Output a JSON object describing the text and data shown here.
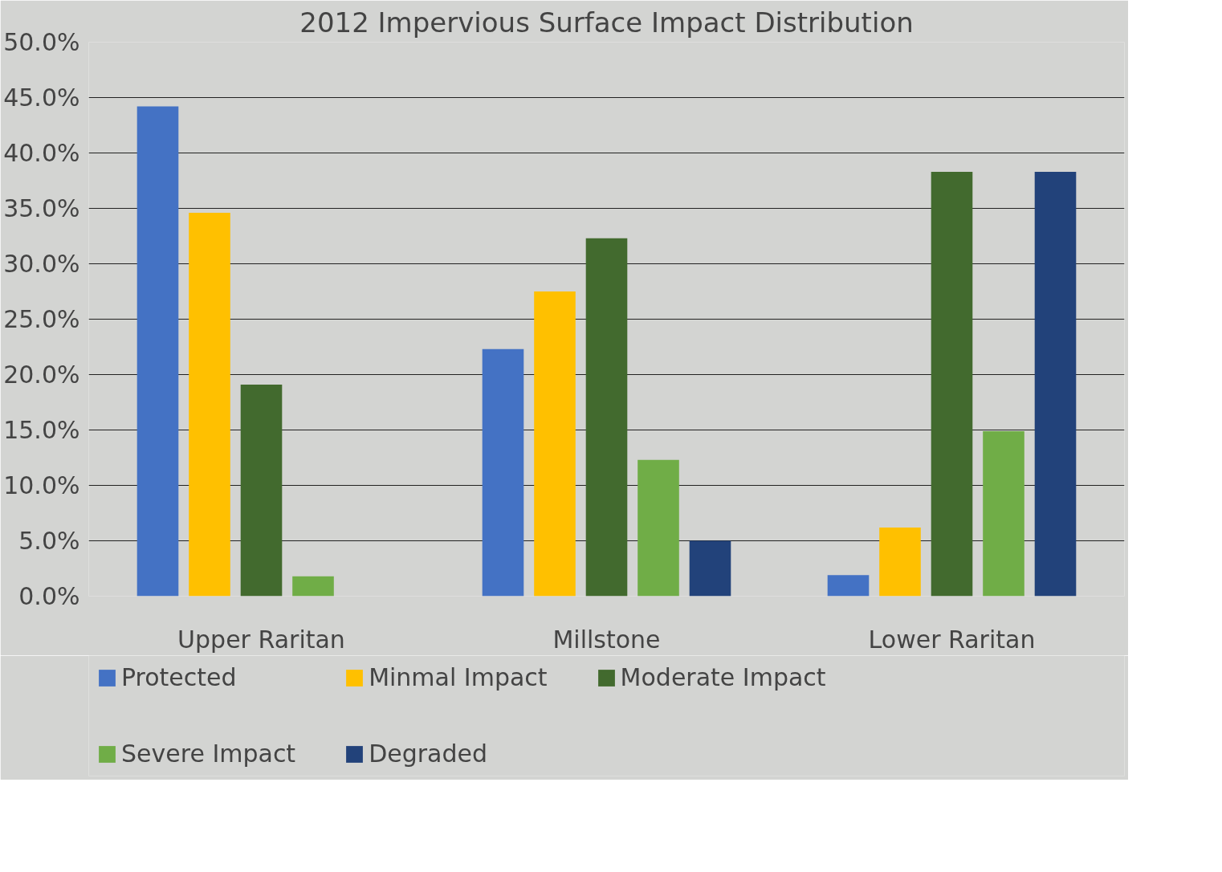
{
  "chart_data": {
    "type": "bar",
    "title": "2012 Impervious Surface Impact Distribution",
    "categories": [
      "Upper Raritan",
      "Millstone",
      "Lower Raritan"
    ],
    "series": [
      {
        "name": "Protected",
        "color": "#4472c4",
        "values": [
          44.2,
          22.3,
          1.9
        ]
      },
      {
        "name": "Minmal Impact",
        "color": "#ffc000",
        "values": [
          34.6,
          27.5,
          6.2
        ]
      },
      {
        "name": "Moderate Impact",
        "color": "#426a2e",
        "values": [
          19.1,
          32.3,
          38.3
        ]
      },
      {
        "name": "Severe Impact",
        "color": "#70ad47",
        "values": [
          1.8,
          12.3,
          14.9
        ]
      },
      {
        "name": "Degraded",
        "color": "#22427a",
        "values": [
          0,
          5.0,
          38.3
        ]
      }
    ],
    "ylim": [
      0,
      50
    ],
    "yticks": [
      {
        "value": 0,
        "label": "0.0%"
      },
      {
        "value": 5,
        "label": "5.0%"
      },
      {
        "value": 10,
        "label": "10.0%"
      },
      {
        "value": 15,
        "label": "15.0%"
      },
      {
        "value": 20,
        "label": "20.0%"
      },
      {
        "value": 25,
        "label": "25.0%"
      },
      {
        "value": 30,
        "label": "30.0%"
      },
      {
        "value": 35,
        "label": "35.0%"
      },
      {
        "value": 40,
        "label": "40.0%"
      },
      {
        "value": 45,
        "label": "45.0%"
      },
      {
        "value": 50,
        "label": "50.0%"
      }
    ],
    "grid": "y",
    "legend": "bottom"
  }
}
